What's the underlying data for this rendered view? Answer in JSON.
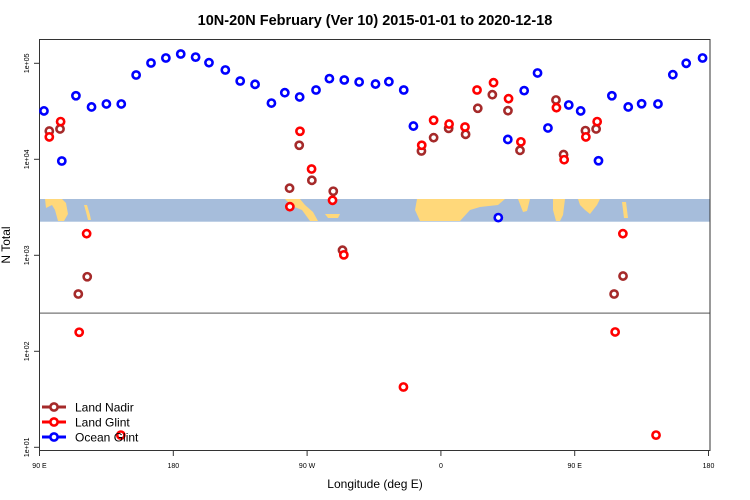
{
  "chart_data": {
    "type": "scatter",
    "title": "10N-20N February (Ver 10)   2015-01-01 to 2020-12-18",
    "xlabel": "Longitude (deg E)",
    "ylabel": "N Total",
    "x_units_note": "continuous longitude, wrapping past 180",
    "xlim": [
      90,
      540
    ],
    "ylim_log10": [
      0.96,
      5.25
    ],
    "y_scale": "log",
    "x_ticks": [
      {
        "value": 90,
        "label": "90 E"
      },
      {
        "value": 180,
        "label": "180"
      },
      {
        "value": 270,
        "label": "90 W"
      },
      {
        "value": 360,
        "label": "0"
      },
      {
        "value": 450,
        "label": "90 E"
      },
      {
        "value": 540,
        "label": "180"
      }
    ],
    "y_ticks": [
      {
        "value": 100000,
        "label": "1e+05"
      },
      {
        "value": 10000,
        "label": "1e+04"
      },
      {
        "value": 1000,
        "label": "1e+03"
      },
      {
        "value": 100,
        "label": "1e+02"
      },
      {
        "value": 10,
        "label": "1e+01"
      }
    ],
    "reference_line": 250,
    "map_band": {
      "lat_range": "10N-20N",
      "ocean_color": "#A6BDDB",
      "land_color": "#FFD87A"
    },
    "legend_position": "bottom-left",
    "series": [
      {
        "name": "Land Nadir",
        "color": "#A52A2A",
        "points": [
          [
            96.6,
            19700
          ],
          [
            103.8,
            20700
          ],
          [
            116.1,
            395
          ],
          [
            122.1,
            598
          ],
          [
            258.2,
            5000
          ],
          [
            264.7,
            14000
          ],
          [
            273.2,
            6040
          ],
          [
            287.6,
            4650
          ],
          [
            293.8,
            1130
          ],
          [
            346.9,
            12200
          ],
          [
            355.1,
            16800
          ],
          [
            365.2,
            21000
          ],
          [
            376.6,
            18200
          ],
          [
            384.8,
            34000
          ],
          [
            394.6,
            47100
          ],
          [
            405.1,
            32100
          ],
          [
            413.2,
            12400
          ],
          [
            437.4,
            41500
          ],
          [
            442.5,
            11200
          ],
          [
            457.2,
            19900
          ],
          [
            464.4,
            20700
          ],
          [
            476.5,
            395
          ],
          [
            482.5,
            608
          ]
        ]
      },
      {
        "name": "Land Glint",
        "color": "#FF0000",
        "points": [
          [
            96.6,
            17100
          ],
          [
            104.2,
            24700
          ],
          [
            116.7,
            158
          ],
          [
            121.7,
            1680
          ],
          [
            144.7,
            13.4
          ],
          [
            258.4,
            3210
          ],
          [
            265.2,
            19600
          ],
          [
            273,
            7920
          ],
          [
            287.1,
            3740
          ],
          [
            294.7,
            1010
          ],
          [
            334.8,
            42.5
          ],
          [
            347.1,
            14000
          ],
          [
            355.1,
            25500
          ],
          [
            365.5,
            23300
          ],
          [
            376.2,
            21700
          ],
          [
            384.3,
            52700
          ],
          [
            395.4,
            62800
          ],
          [
            405.5,
            42800
          ],
          [
            413.8,
            15200
          ],
          [
            437.7,
            34500
          ],
          [
            442.9,
            9900
          ],
          [
            457.5,
            17100
          ],
          [
            465.1,
            24700
          ],
          [
            477.2,
            159
          ],
          [
            482.4,
            1680
          ],
          [
            504.7,
            13.4
          ]
        ]
      },
      {
        "name": "Ocean Glint",
        "color": "#0000FF",
        "points": [
          [
            93,
            31900
          ],
          [
            105,
            9600
          ],
          [
            114.5,
            45900
          ],
          [
            125,
            35100
          ],
          [
            135,
            37700
          ],
          [
            145,
            37700
          ],
          [
            155,
            75500
          ],
          [
            165,
            100700
          ],
          [
            175,
            113600
          ],
          [
            185,
            125000
          ],
          [
            195,
            116000
          ],
          [
            204,
            101500
          ],
          [
            215,
            85200
          ],
          [
            225,
            65400
          ],
          [
            235,
            60400
          ],
          [
            246,
            38500
          ],
          [
            255,
            49400
          ],
          [
            265,
            44600
          ],
          [
            276,
            52700
          ],
          [
            285,
            69200
          ],
          [
            295,
            67000
          ],
          [
            305,
            63900
          ],
          [
            316,
            60800
          ],
          [
            325,
            64300
          ],
          [
            335,
            52700
          ],
          [
            341.5,
            22200
          ],
          [
            398.6,
            2470
          ],
          [
            405,
            16100
          ],
          [
            416,
            51900
          ],
          [
            425,
            79300
          ],
          [
            432,
            21200
          ],
          [
            446,
            36800
          ],
          [
            454,
            31900
          ],
          [
            466,
            9660
          ],
          [
            475,
            45900
          ],
          [
            486,
            35100
          ],
          [
            495,
            37900
          ],
          [
            506,
            37700
          ],
          [
            516,
            76100
          ],
          [
            525,
            100000
          ],
          [
            536,
            113600
          ]
        ]
      }
    ]
  }
}
